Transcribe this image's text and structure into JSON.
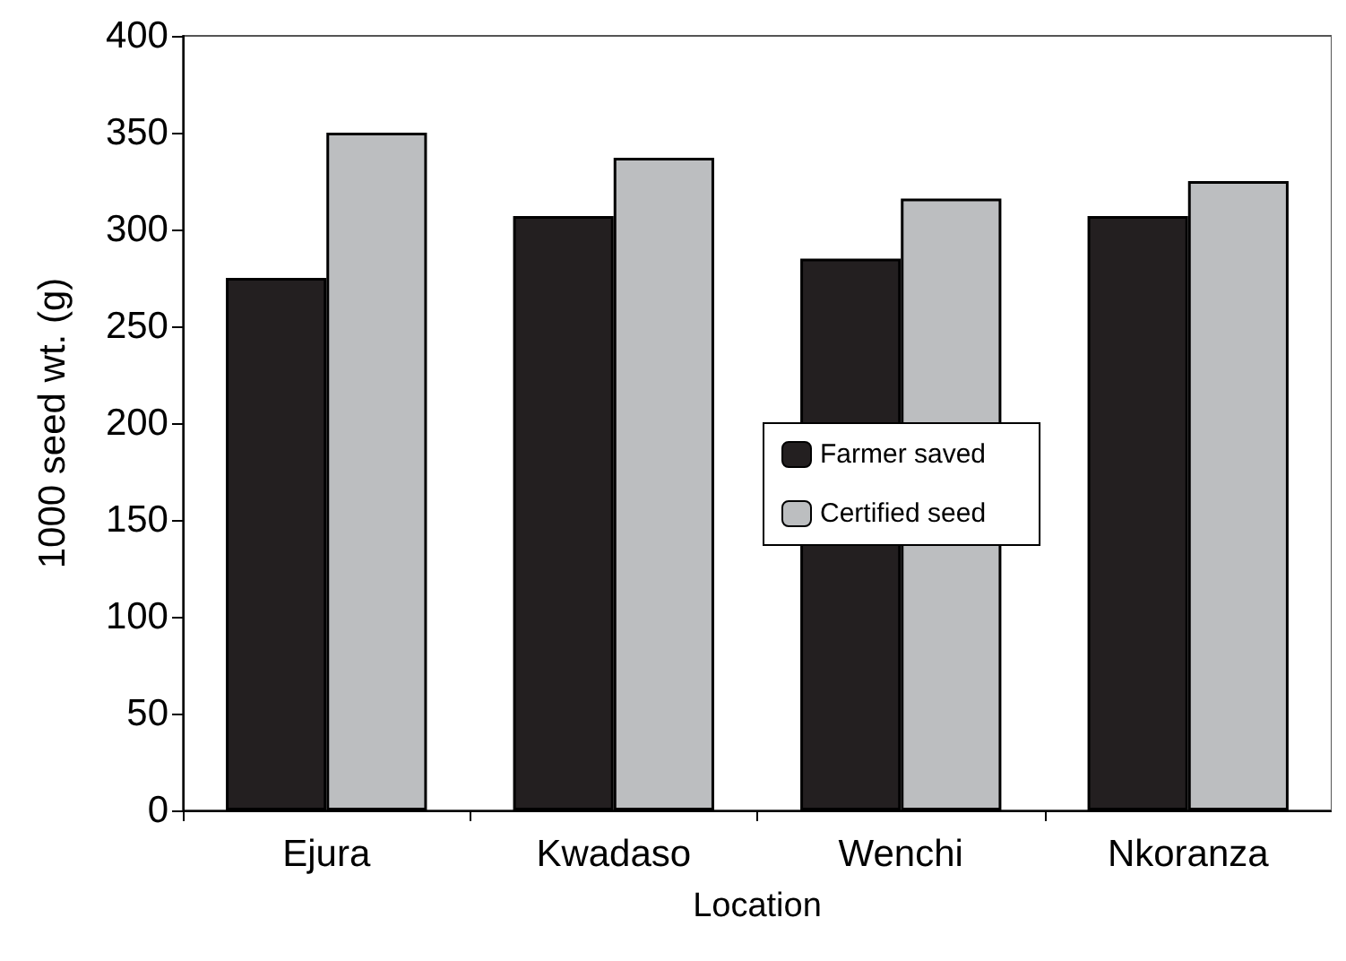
{
  "chart_data": {
    "type": "bar",
    "xlabel": "Location",
    "ylabel": "1000 seed wt. (g)",
    "categories": [
      "Ejura",
      "Kwadaso",
      "Wenchi",
      "Nkoranza"
    ],
    "series": [
      {
        "name": "Farmer saved",
        "color": "#231f20",
        "values": [
          275,
          307,
          285,
          307
        ]
      },
      {
        "name": "Certified seed",
        "color": "#bcbec0",
        "values": [
          350,
          337,
          316,
          325
        ]
      }
    ],
    "ylim": [
      0,
      400
    ],
    "yticks": [
      0,
      50,
      100,
      150,
      200,
      250,
      300,
      350,
      400
    ],
    "grid": false,
    "legend": "center"
  }
}
